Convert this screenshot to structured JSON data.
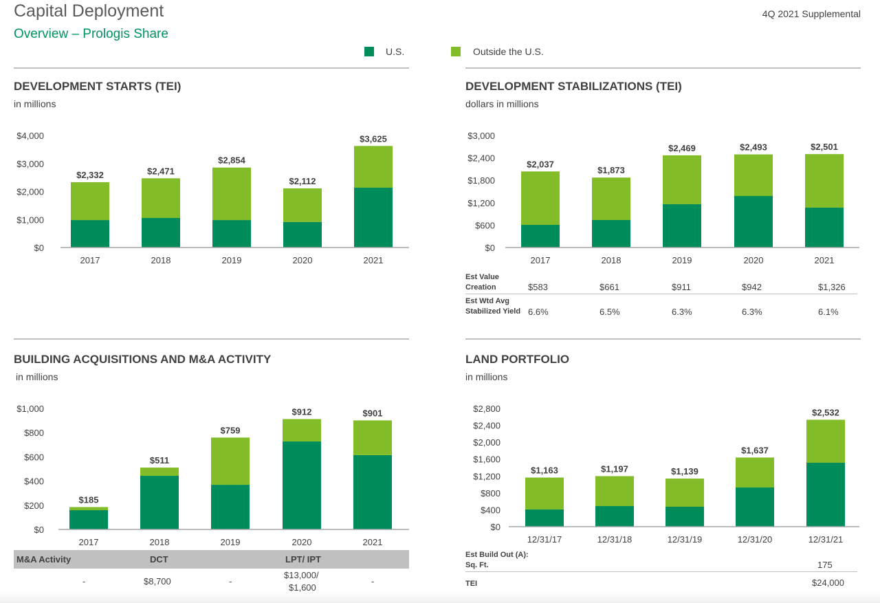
{
  "header": {
    "title": "Capital Deployment",
    "subtitle": "Overview – Prologis Share",
    "supplemental": "4Q 2021 Supplemental"
  },
  "legend": {
    "placement": "top-right",
    "items": [
      {
        "label": "U.S.",
        "color": "#008c5a"
      },
      {
        "label": "Outside the U.S.",
        "color": "#82bc28"
      }
    ]
  },
  "chart_data": [
    {
      "type": "bar",
      "stacked": true,
      "title": "DEVELOPMENT STARTS (TEI)",
      "subtitle": "in millions",
      "categories": [
        "2017",
        "2018",
        "2019",
        "2020",
        "2021"
      ],
      "series": [
        {
          "name": "U.S.",
          "values": [
            980,
            1055,
            980,
            910,
            2135
          ]
        },
        {
          "name": "Outside the U.S.",
          "values": [
            1352,
            1416,
            1874,
            1202,
            1490
          ]
        }
      ],
      "totals": [
        2332,
        2471,
        2854,
        2112,
        3625
      ],
      "total_labels": [
        "$2,332",
        "$2,471",
        "$2,854",
        "$2,112",
        "$3,625"
      ],
      "yticks": [
        "$0",
        "$1,000",
        "$2,000",
        "$3,000",
        "$4,000"
      ],
      "ylim": [
        0,
        4000
      ],
      "grid": false
    },
    {
      "type": "bar",
      "stacked": true,
      "title": "DEVELOPMENT STABILIZATIONS (TEI)",
      "subtitle": "dollars in millions",
      "categories": [
        "2017",
        "2018",
        "2019",
        "2020",
        "2021"
      ],
      "series": [
        {
          "name": "U.S.",
          "values": [
            607,
            736,
            1160,
            1380,
            1068
          ]
        },
        {
          "name": "Outside the U.S.",
          "values": [
            1430,
            1137,
            1309,
            1113,
            1433
          ]
        }
      ],
      "totals": [
        2037,
        1873,
        2469,
        2493,
        2501
      ],
      "total_labels": [
        "$2,037",
        "$1,873",
        "$2,469",
        "$2,493",
        "$2,501"
      ],
      "yticks": [
        "$0",
        "$600",
        "$1,200",
        "$1,800",
        "$2,400",
        "$3,000"
      ],
      "ylim": [
        0,
        3000
      ],
      "grid": false,
      "table": {
        "rows": [
          {
            "label_line1": "Est Value",
            "label_line2": "Creation",
            "values": [
              "$583",
              "$661",
              "$911",
              "$942",
              "$1,326"
            ]
          },
          {
            "label_line1": "Est Wtd Avg",
            "label_line2": "Stabilized Yield",
            "values": [
              "6.6%",
              "6.5%",
              "6.3%",
              "6.3%",
              "6.1%"
            ]
          }
        ]
      }
    },
    {
      "type": "bar",
      "stacked": true,
      "title": "BUILDING ACQUISITIONS AND M&A ACTIVITY",
      "subtitle": "in millions",
      "categories": [
        "2017",
        "2018",
        "2019",
        "2020",
        "2021"
      ],
      "series": [
        {
          "name": "U.S.",
          "values": [
            159,
            443,
            369,
            727,
            614
          ]
        },
        {
          "name": "Outside the U.S.",
          "values": [
            26,
            68,
            390,
            185,
            287
          ]
        }
      ],
      "totals": [
        185,
        511,
        759,
        912,
        901
      ],
      "total_labels": [
        "$185",
        "$511",
        "$759",
        "$912",
        "$901"
      ],
      "yticks": [
        "$0",
        "$200",
        "$400",
        "$600",
        "$800",
        "$1,000"
      ],
      "ylim": [
        0,
        1000
      ],
      "grid": false,
      "table": {
        "header": {
          "label": "M&A Activity",
          "dct": "DCT",
          "lpt": "LPT/ IPT"
        },
        "values": [
          "-",
          "$8,700",
          "-",
          "$13,000/",
          "$1,600",
          "-"
        ]
      }
    },
    {
      "type": "bar",
      "stacked": true,
      "title": "LAND PORTFOLIO",
      "subtitle": "in millions",
      "categories": [
        "12/31/17",
        "12/31/18",
        "12/31/19",
        "12/31/20",
        "12/31/21"
      ],
      "series": [
        {
          "name": "U.S.",
          "values": [
            407,
            488,
            472,
            928,
            1514
          ]
        },
        {
          "name": "Outside the U.S.",
          "values": [
            756,
            709,
            667,
            709,
            1018
          ]
        }
      ],
      "totals": [
        1163,
        1197,
        1139,
        1637,
        2532
      ],
      "total_labels": [
        "$1,163",
        "$1,197",
        "$1,139",
        "$1,637",
        "$2,532"
      ],
      "yticks": [
        "$0",
        "$400",
        "$800",
        "$1,200",
        "$1,600",
        "$2,000",
        "$2,400",
        "$2,800"
      ],
      "ylim": [
        0,
        2800
      ],
      "grid": false,
      "table": {
        "build_out_line1": "Est Build Out (A):",
        "build_out_line2": "Sq. Ft.",
        "sqft": "175",
        "tei_label": "TEI",
        "tei": "$24,000"
      }
    }
  ]
}
